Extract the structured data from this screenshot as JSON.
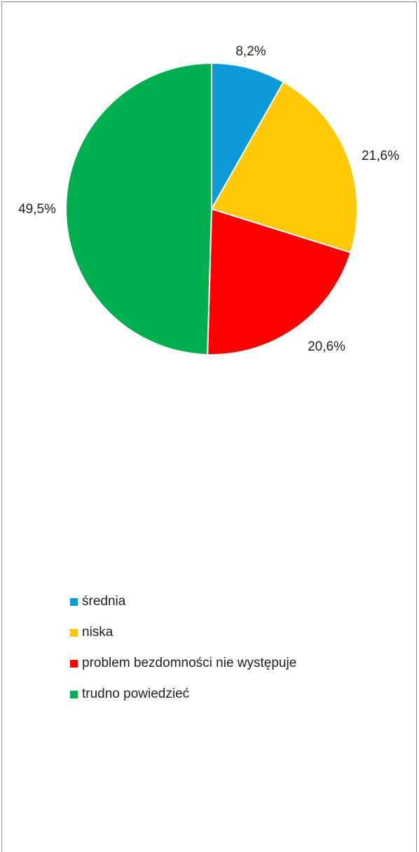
{
  "chart_data": {
    "type": "pie",
    "categories": [
      "średnia",
      "niska",
      "problem bezdomności nie występuje",
      "trudno powiedzieć"
    ],
    "values": [
      8.2,
      21.6,
      20.6,
      49.5
    ],
    "labels": [
      "8,2%",
      "21,6%",
      "20,6%",
      "49,5%"
    ],
    "colors": [
      "#0c9ad8",
      "#ffc905",
      "#ff0000",
      "#00b050"
    ],
    "legend_position": "bottom"
  }
}
